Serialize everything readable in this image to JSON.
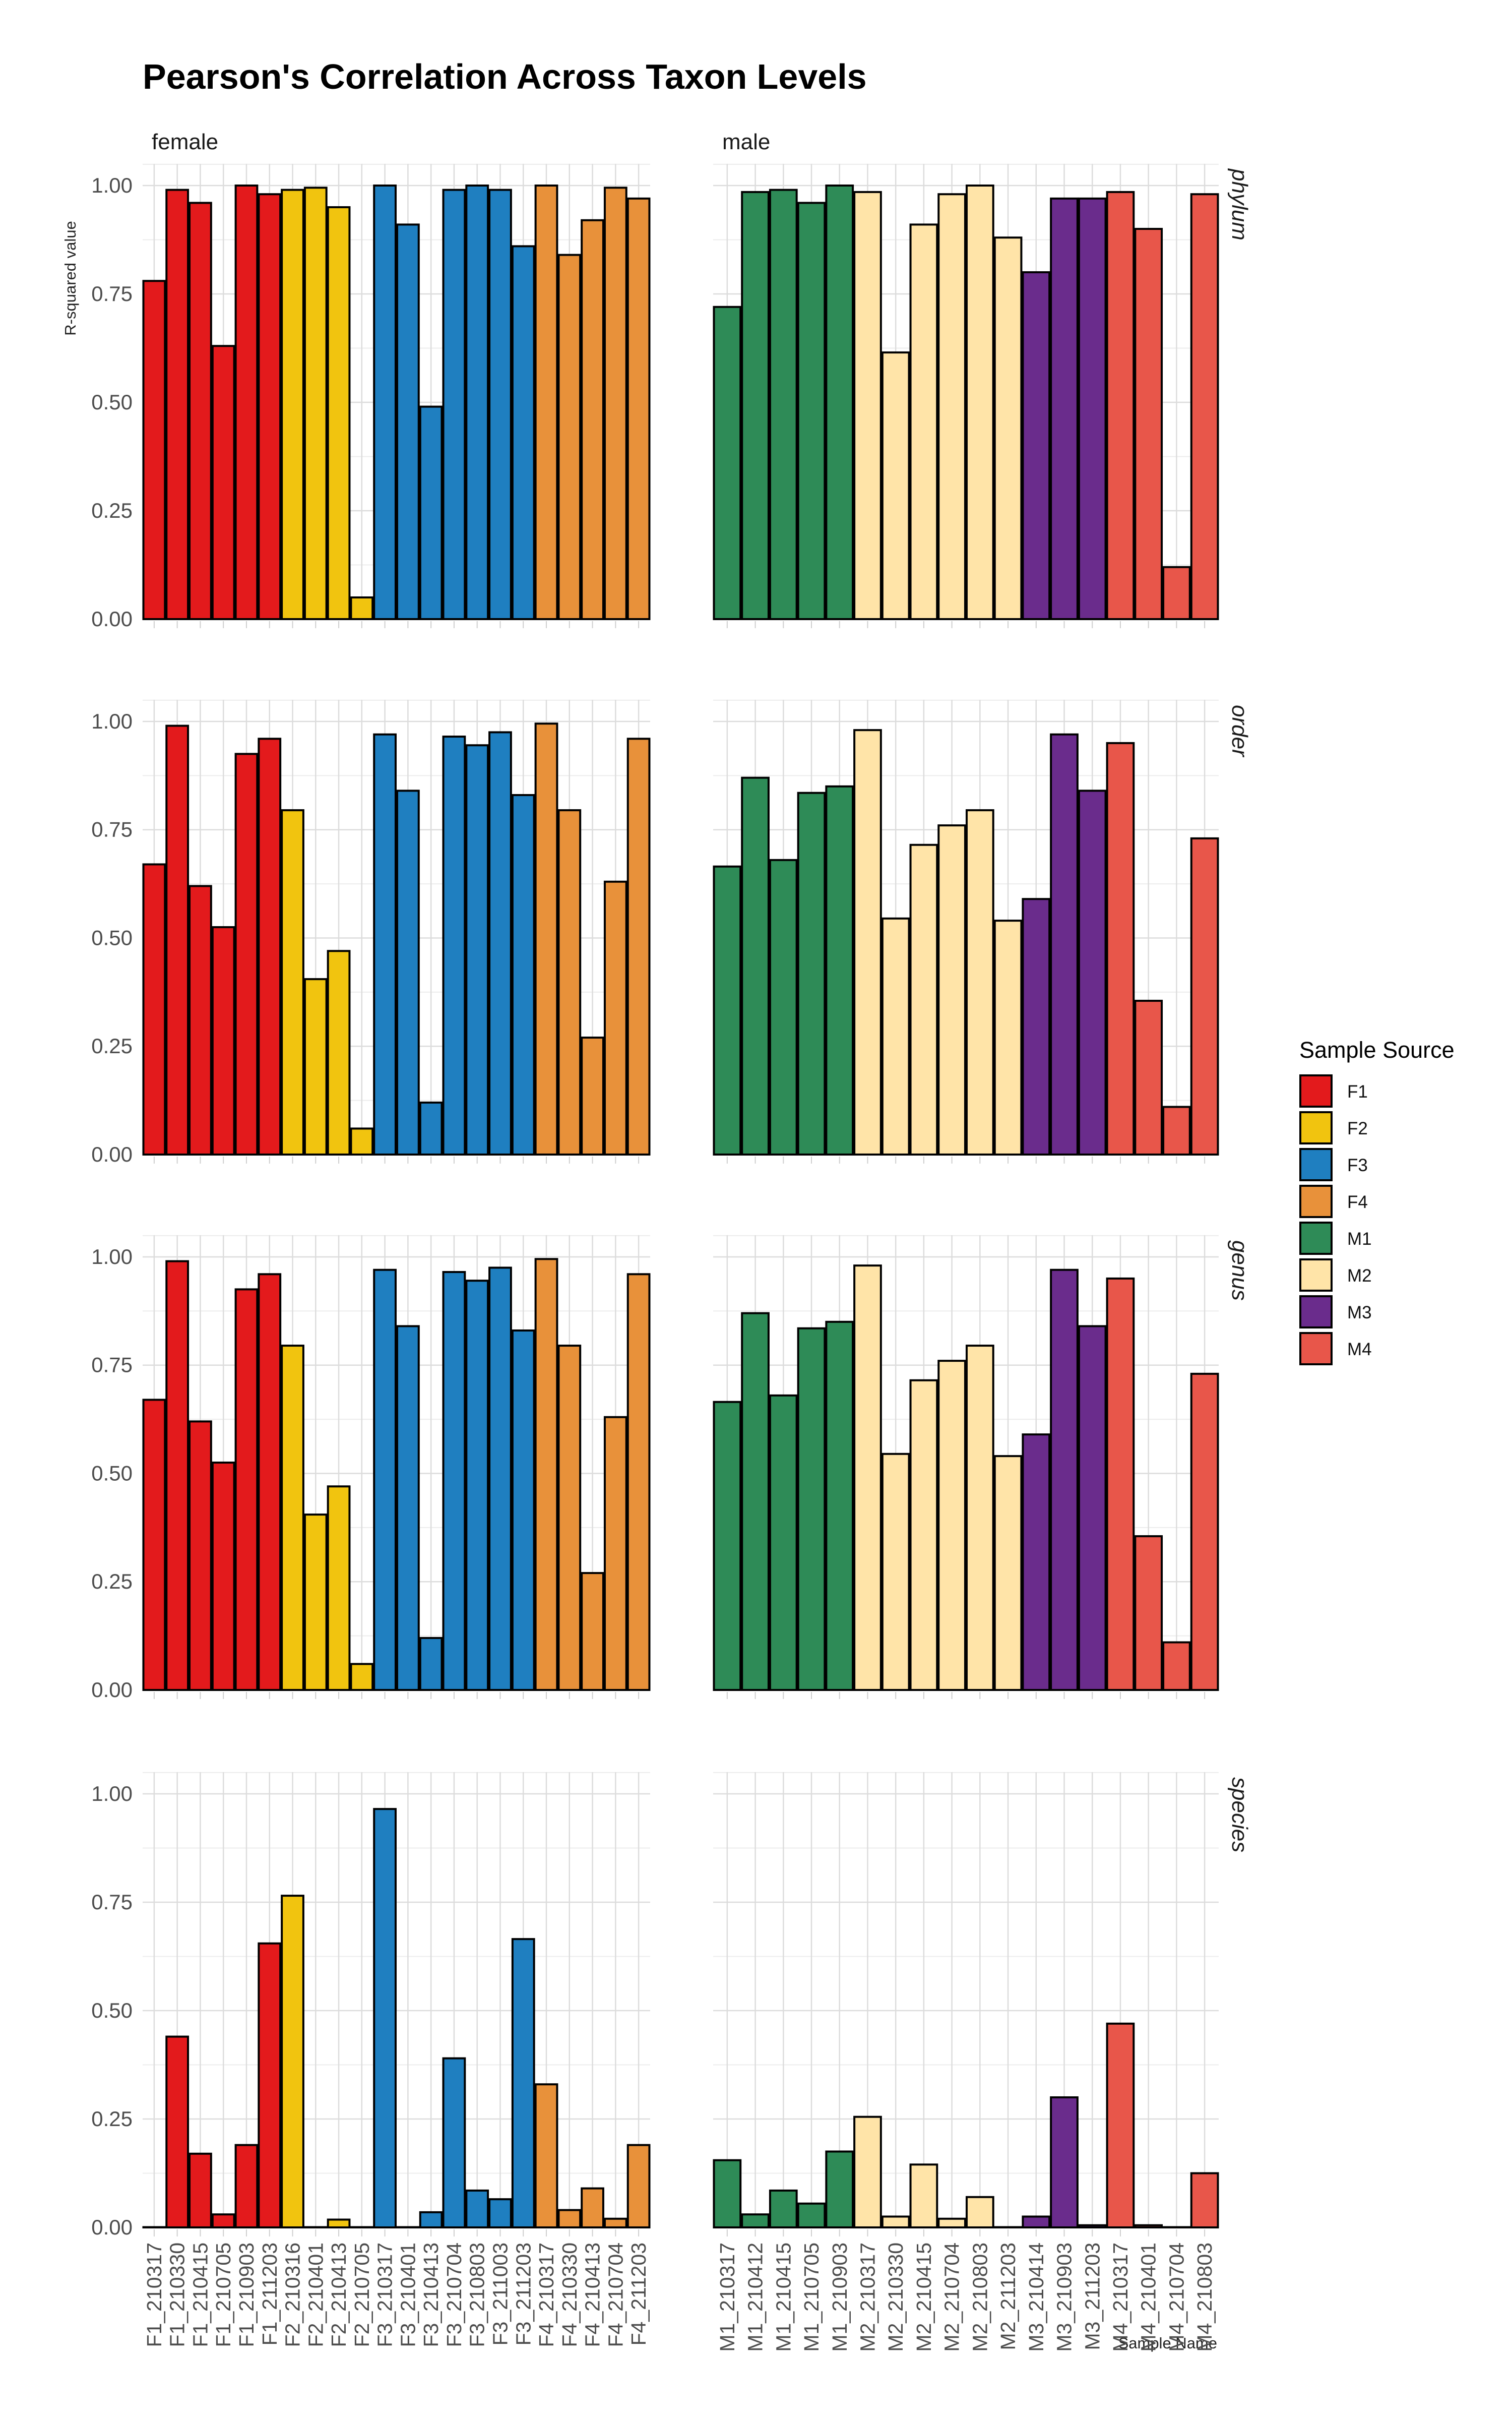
{
  "chart_data": {
    "type": "bar",
    "title": "Pearson's Correlation Across Taxon Levels",
    "ylabel": "R-squared value",
    "xlabel": "Sample Name",
    "ylim": [
      0,
      1.05
    ],
    "yticks": [
      "0.00",
      "0.25",
      "0.50",
      "0.75",
      "1.00"
    ],
    "grid": true,
    "legend": {
      "title": "Sample Source",
      "placement": "right",
      "items": [
        {
          "label": "F1",
          "color": "#E31A1C"
        },
        {
          "label": "F2",
          "color": "#F1C40F"
        },
        {
          "label": "F3",
          "color": "#1F7FC0"
        },
        {
          "label": "F4",
          "color": "#E8913A"
        },
        {
          "label": "M1",
          "color": "#2E8B57"
        },
        {
          "label": "M2",
          "color": "#FFE4A8"
        },
        {
          "label": "M3",
          "color": "#6A2C8C"
        },
        {
          "label": "M4",
          "color": "#E8564A"
        }
      ]
    },
    "facet_columns": [
      {
        "label": "female",
        "categories": [
          "F1_210317",
          "F1_210330",
          "F1_210415",
          "F1_210705",
          "F1_210903",
          "F1_211203",
          "F2_210316",
          "F2_210401",
          "F2_210413",
          "F2_210705",
          "F3_210317",
          "F3_210401",
          "F3_210413",
          "F3_210704",
          "F3_210803",
          "F3_211003",
          "F3_211203",
          "F4_210317",
          "F4_210330",
          "F4_210413",
          "F4_210704",
          "F4_211203"
        ],
        "groups": [
          "F1",
          "F1",
          "F1",
          "F1",
          "F1",
          "F1",
          "F2",
          "F2",
          "F2",
          "F2",
          "F3",
          "F3",
          "F3",
          "F3",
          "F3",
          "F3",
          "F3",
          "F4",
          "F4",
          "F4",
          "F4",
          "F4"
        ]
      },
      {
        "label": "male",
        "categories": [
          "M1_210317",
          "M1_210412",
          "M1_210415",
          "M1_210705",
          "M1_210903",
          "M2_210317",
          "M2_210330",
          "M2_210415",
          "M2_210704",
          "M2_210803",
          "M2_211203",
          "M3_210414",
          "M3_210903",
          "M3_211203",
          "M4_210317",
          "M4_210401",
          "M4_210704",
          "M4_210803"
        ],
        "groups": [
          "M1",
          "M1",
          "M1",
          "M1",
          "M1",
          "M2",
          "M2",
          "M2",
          "M2",
          "M2",
          "M2",
          "M3",
          "M3",
          "M3",
          "M4",
          "M4",
          "M4",
          "M4"
        ]
      }
    ],
    "facet_rows": [
      {
        "label": "phylum",
        "female": [
          0.78,
          0.99,
          0.96,
          0.63,
          1.0,
          0.98,
          0.99,
          0.995,
          0.95,
          0.05,
          1.0,
          0.91,
          0.49,
          0.99,
          1.0,
          0.99,
          0.86,
          1.0,
          0.84,
          0.92,
          0.995,
          0.97
        ],
        "male": [
          0.72,
          0.985,
          0.99,
          0.96,
          1.0,
          0.985,
          0.615,
          0.91,
          0.98,
          1.0,
          0.88,
          0.8,
          0.97,
          0.97,
          0.985,
          0.9,
          0.12,
          0.98
        ]
      },
      {
        "label": "order",
        "female": [
          0.67,
          0.99,
          0.62,
          0.525,
          0.925,
          0.96,
          0.795,
          0.405,
          0.47,
          0.06,
          0.97,
          0.84,
          0.12,
          0.965,
          0.945,
          0.975,
          0.83,
          0.995,
          0.795,
          0.27,
          0.63,
          0.96
        ],
        "male": [
          0.665,
          0.87,
          0.68,
          0.835,
          0.85,
          0.98,
          0.545,
          0.715,
          0.76,
          0.795,
          0.54,
          0.59,
          0.97,
          0.84,
          0.95,
          0.355,
          0.11,
          0.73
        ]
      },
      {
        "label": "genus",
        "female": [
          0.67,
          0.99,
          0.62,
          0.525,
          0.925,
          0.96,
          0.795,
          0.405,
          0.47,
          0.06,
          0.97,
          0.84,
          0.12,
          0.965,
          0.945,
          0.975,
          0.83,
          0.995,
          0.795,
          0.27,
          0.63,
          0.96
        ],
        "male": [
          0.665,
          0.87,
          0.68,
          0.835,
          0.85,
          0.98,
          0.545,
          0.715,
          0.76,
          0.795,
          0.54,
          0.59,
          0.97,
          0.84,
          0.95,
          0.355,
          0.11,
          0.73
        ]
      },
      {
        "label": "species",
        "female": [
          0.0,
          0.44,
          0.17,
          0.03,
          0.19,
          0.655,
          0.765,
          0.0,
          0.018,
          0.0,
          0.965,
          0.0,
          0.035,
          0.39,
          0.085,
          0.065,
          0.665,
          0.33,
          0.04,
          0.09,
          0.02,
          0.19
        ],
        "male": [
          0.155,
          0.03,
          0.085,
          0.055,
          0.175,
          0.255,
          0.025,
          0.145,
          0.02,
          0.07,
          0.0,
          0.025,
          0.3,
          0.005,
          0.47,
          0.005,
          0.0,
          0.125
        ]
      }
    ]
  }
}
